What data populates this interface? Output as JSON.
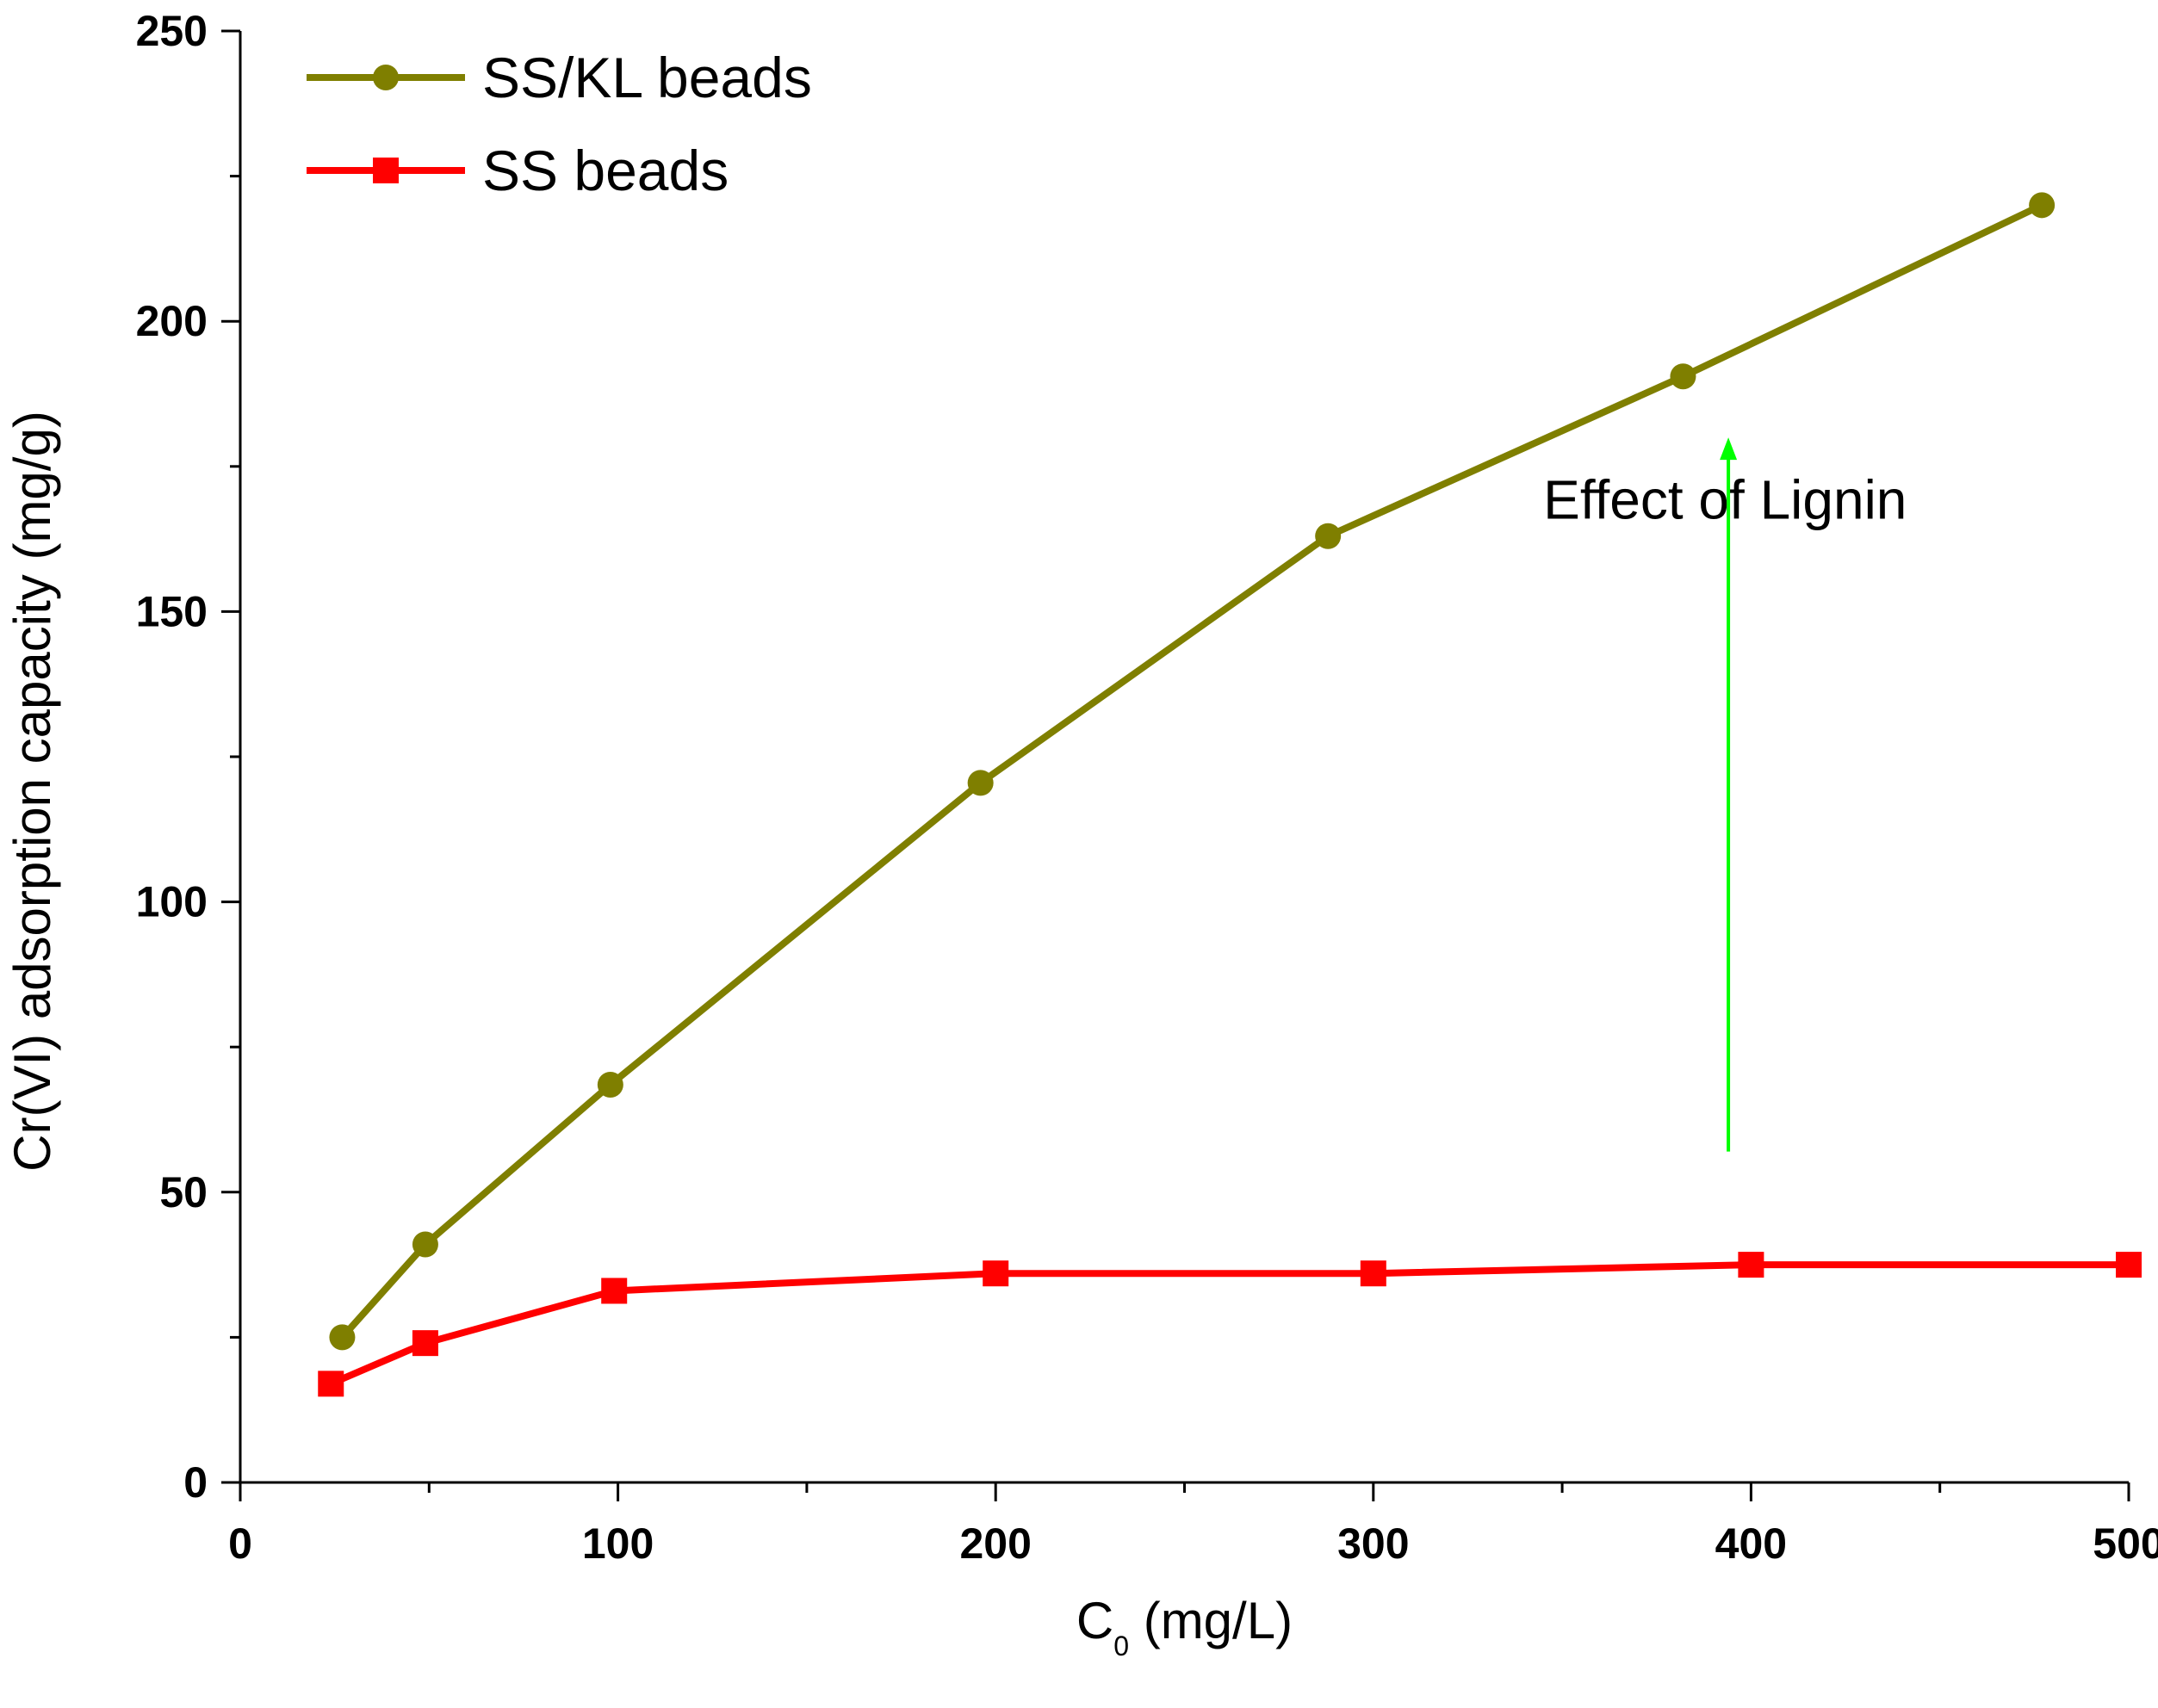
{
  "chart_data": {
    "type": "line",
    "title": "",
    "xlabel_main": "C",
    "xlabel_sub": "0",
    "xlabel_unit": " (mg/L)",
    "ylabel": "Cr(VI) adsorption capacity (mg/g)",
    "xlim": [
      0,
      500
    ],
    "ylim": [
      0,
      250
    ],
    "xticks": [
      0,
      100,
      200,
      300,
      400,
      500
    ],
    "yticks": [
      0,
      50,
      100,
      150,
      200,
      250
    ],
    "grid": false,
    "legend_position": "top-left",
    "series": [
      {
        "name": "SS/KL beads",
        "color": "#7f7f00",
        "marker": "circle",
        "x": [
          27,
          49,
          98,
          196,
          288,
          382,
          477
        ],
        "y": [
          25,
          41,
          68.5,
          120.5,
          163,
          190.5,
          220
        ]
      },
      {
        "name": "SS beads",
        "color": "#ff0000",
        "marker": "square",
        "x": [
          24,
          49,
          99,
          200,
          300,
          400,
          500
        ],
        "y": [
          17,
          24,
          33,
          36,
          36,
          37.5,
          37.5
        ]
      }
    ],
    "annotations": [
      {
        "text": "Effect of Lignin",
        "arrow_color": "#00ff00",
        "arrow_x": 394,
        "arrow_from_y": 57,
        "arrow_to_y": 180,
        "text_x": 345,
        "text_y": 166
      }
    ]
  }
}
